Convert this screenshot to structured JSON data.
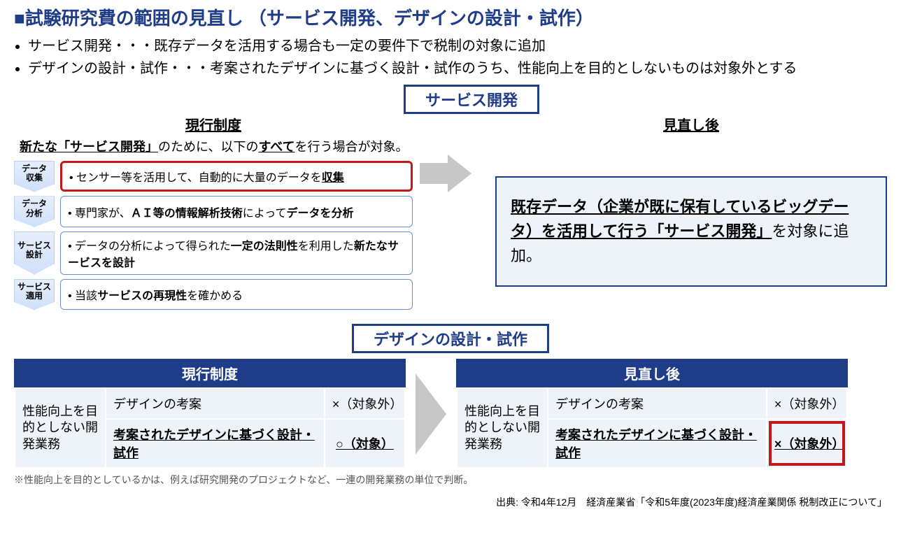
{
  "title": "■試験研究費の範囲の見直し （サービス開発、デザインの設計・試作）",
  "bullets": [
    "サービス開発・・・既存データを活用する場合も一定の要件下で税制の対象に追加",
    "デザインの設計・試作・・・考案されたデザインに基づく設計・試作のうち、性能向上を目的としないものは対象外とする"
  ],
  "service": {
    "tag": "サービス開発",
    "left_title": "現行制度",
    "right_title": "見直し後",
    "intro_a": "新たな「サービス開発」",
    "intro_b": "のために、以下の",
    "intro_c": "すべて",
    "intro_d": "を行う場合が対象。",
    "steps": [
      {
        "tag": "データ\n収集",
        "pre": "• センサー等を活用して、自動的に大量のデータを",
        "u": "収集",
        "post": "",
        "hl": true
      },
      {
        "tag": "データ\n分析",
        "pre": "• 専門家が、",
        "b": "ＡＩ等の情報解析技術",
        "mid": "によって",
        "b2": "データを分析",
        "post": ""
      },
      {
        "tag": "サービス\n設計",
        "pre": "• データの分析によって得られた",
        "b": "一定の法則性",
        "mid": "を利用した",
        "b2": "新たなサービスを設計",
        "post": ""
      },
      {
        "tag": "サービス\n適用",
        "pre": "• 当該",
        "b": "サービスの再現性",
        "mid": "を確かめる",
        "b2": "",
        "post": ""
      }
    ],
    "result_u": "既存データ（企業が既に保有しているビッグデータ）を活用して行う「サービス開発」",
    "result_tail": "を対象に追加。"
  },
  "design": {
    "tag": "デザインの設計・試作",
    "left_head": "現行制度",
    "right_head": "見直し後",
    "rowlabel": "性能向上を目的としない開発業務",
    "r1c1": "デザインの考案",
    "r1c2": "×（対象外）",
    "r2c1": "考案されたデザインに基づく設計・試作",
    "left_r2c2": "○（対象）",
    "right_r2c2": "×（対象外）"
  },
  "note": "※性能向上を目的としているかは、例えば研究開発のプロジェクトなど、一連の開発業務の単位で判断。",
  "source": "出典: 令和4年12月　経済産業省「令和5年度(2023年度)経済産業関係 税制改正について」"
}
